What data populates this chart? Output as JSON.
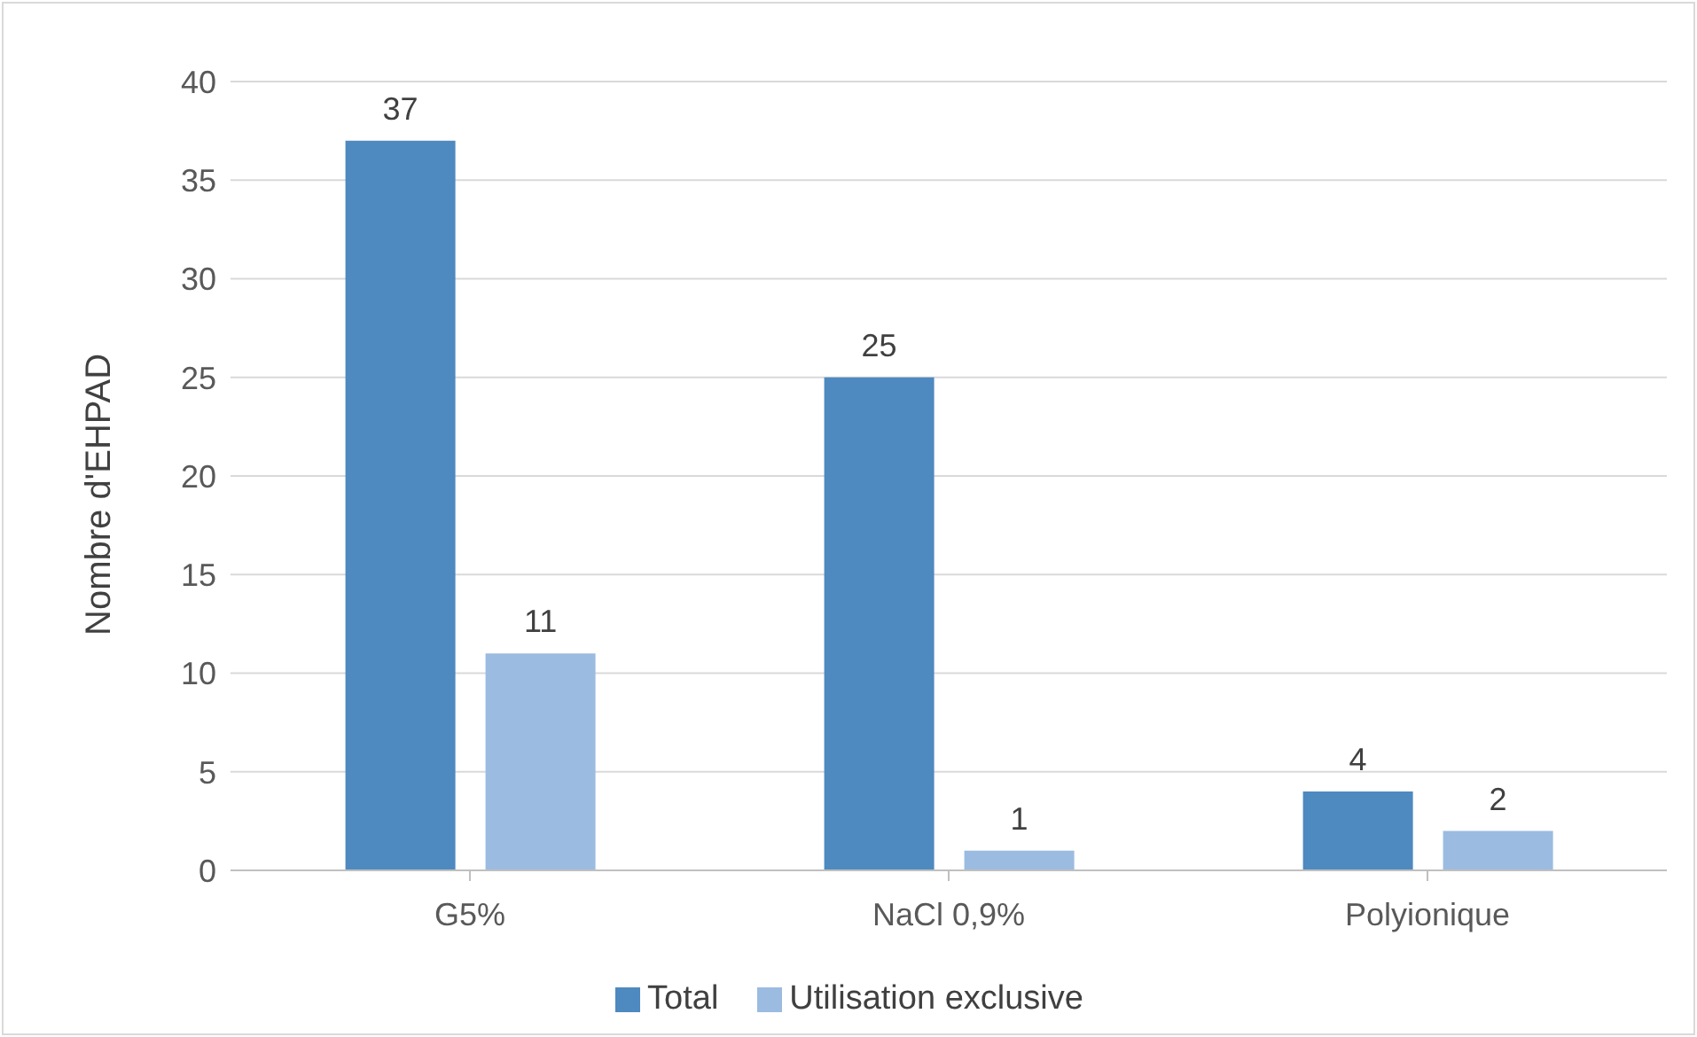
{
  "chart_data": {
    "type": "bar",
    "ylabel": "Nombre d'EHPAD",
    "categories": [
      "G5%",
      "NaCl 0,9%",
      "Polyionique"
    ],
    "series": [
      {
        "name": "Total",
        "color": "#4e89bf",
        "values": [
          37,
          25,
          4
        ]
      },
      {
        "name": "Utilisation exclusive",
        "color": "#9bbbe1",
        "values": [
          11,
          1,
          2
        ]
      }
    ],
    "ylim": [
      0,
      40
    ],
    "yticks": [
      0,
      5,
      10,
      15,
      20,
      25,
      30,
      35,
      40
    ],
    "grid": "y",
    "legend": "bottom",
    "data_labels": true
  }
}
